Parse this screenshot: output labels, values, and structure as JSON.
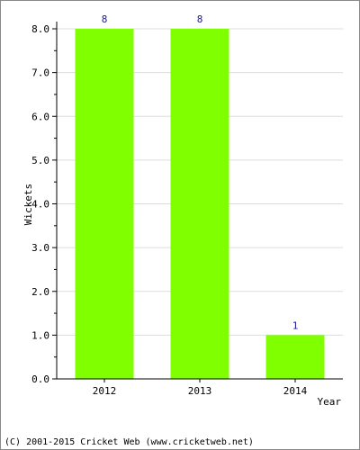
{
  "chart_data": {
    "type": "bar",
    "categories": [
      "2012",
      "2013",
      "2014"
    ],
    "values": [
      8,
      8,
      1
    ],
    "data_labels": [
      "8",
      "8",
      "1"
    ],
    "title": "",
    "xlabel": "Year",
    "ylabel": "Wickets",
    "ylim": [
      0,
      8
    ],
    "yticks": [
      "0.0",
      "1.0",
      "2.0",
      "3.0",
      "4.0",
      "5.0",
      "6.0",
      "7.0",
      "8.0"
    ],
    "grid": true,
    "bar_color": "#80ff00",
    "grid_color": "#dddddd"
  },
  "footer": {
    "copyright": "(C) 2001-2015 Cricket Web (www.cricketweb.net)"
  }
}
